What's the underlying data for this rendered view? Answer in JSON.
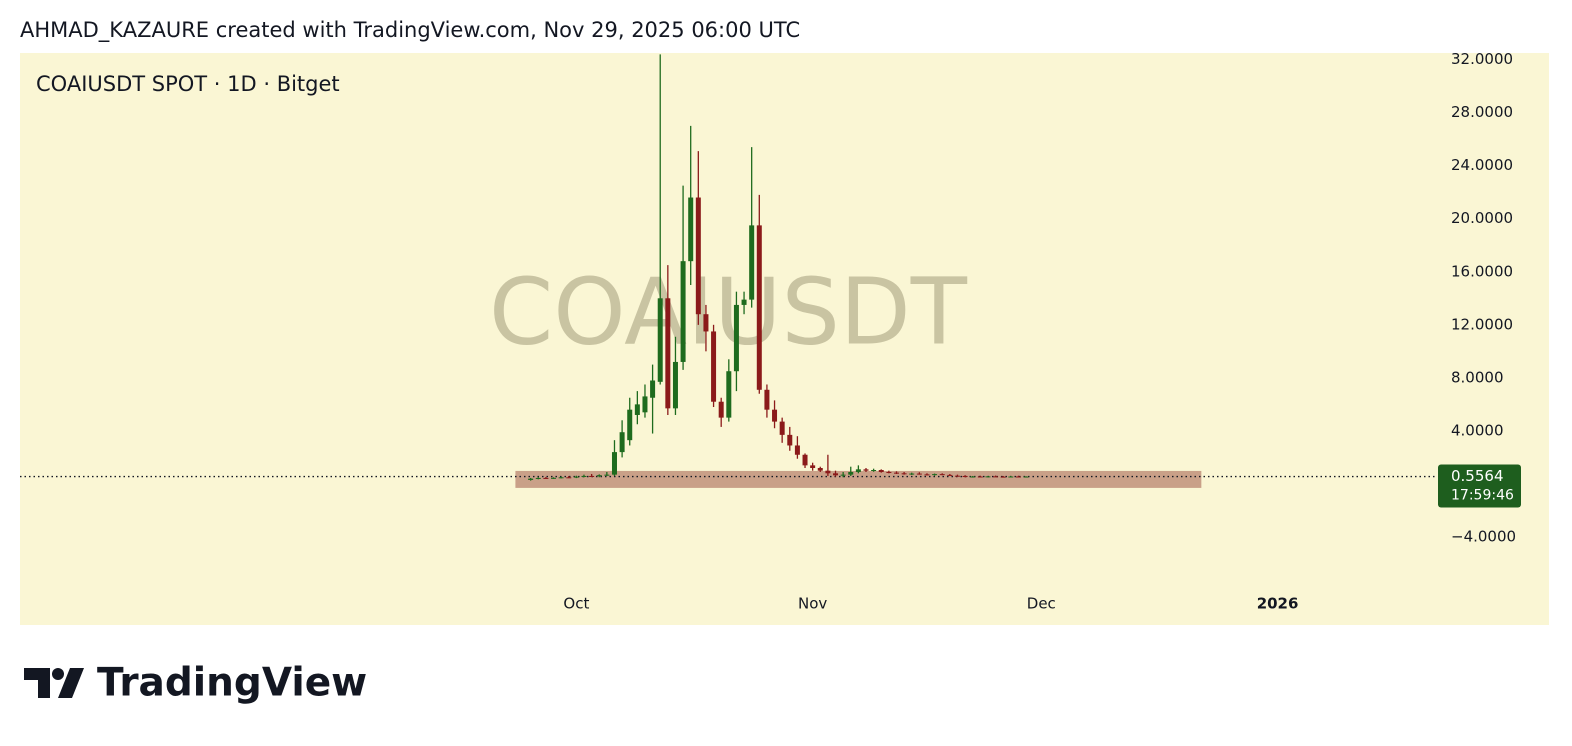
{
  "header": {
    "attribution": "AHMAD_KAZAURE created with TradingView.com, Nov 29, 2025 06:00 UTC"
  },
  "footer": {
    "brand": "TradingView"
  },
  "chart_data": {
    "type": "candlestick",
    "title": "COAIUSDT SPOT · 1D · Bitget",
    "watermark": "COAIUSDT",
    "up_color": "#1e6b1e",
    "down_color": "#8b1a1a",
    "x": [
      "2025-09-25",
      "2025-09-26",
      "2025-09-27",
      "2025-09-28",
      "2025-09-29",
      "2025-09-30",
      "2025-10-01",
      "2025-10-02",
      "2025-10-03",
      "2025-10-04",
      "2025-10-05",
      "2025-10-06",
      "2025-10-07",
      "2025-10-08",
      "2025-10-09",
      "2025-10-10",
      "2025-10-11",
      "2025-10-12",
      "2025-10-13",
      "2025-10-14",
      "2025-10-15",
      "2025-10-16",
      "2025-10-17",
      "2025-10-18",
      "2025-10-19",
      "2025-10-20",
      "2025-10-21",
      "2025-10-22",
      "2025-10-23",
      "2025-10-24",
      "2025-10-25",
      "2025-10-26",
      "2025-10-27",
      "2025-10-28",
      "2025-10-29",
      "2025-10-30",
      "2025-10-31",
      "2025-11-01",
      "2025-11-02",
      "2025-11-03",
      "2025-11-04",
      "2025-11-05",
      "2025-11-06",
      "2025-11-07",
      "2025-11-08",
      "2025-11-09",
      "2025-11-10",
      "2025-11-11",
      "2025-11-12",
      "2025-11-13",
      "2025-11-14",
      "2025-11-15",
      "2025-11-16",
      "2025-11-17",
      "2025-11-18",
      "2025-11-19",
      "2025-11-20",
      "2025-11-21",
      "2025-11-22",
      "2025-11-23",
      "2025-11-24",
      "2025-11-25",
      "2025-11-26",
      "2025-11-27",
      "2025-11-28",
      "2025-11-29"
    ],
    "open": [
      0.3,
      0.4,
      0.45,
      0.42,
      0.46,
      0.5,
      0.48,
      0.55,
      0.6,
      0.58,
      0.66,
      0.7,
      2.4,
      3.3,
      5.2,
      5.4,
      6.5,
      7.7,
      14.0,
      5.7,
      9.2,
      16.8,
      21.6,
      12.8,
      11.5,
      6.2,
      5.0,
      8.5,
      13.5,
      13.9,
      19.5,
      7.1,
      5.6,
      4.7,
      3.7,
      2.9,
      2.2,
      1.4,
      1.2,
      1.0,
      0.8,
      0.65,
      0.7,
      0.9,
      1.1,
      1.0,
      1.05,
      0.9,
      0.85,
      0.8,
      0.75,
      0.78,
      0.72,
      0.7,
      0.74,
      0.68,
      0.62,
      0.6,
      0.52,
      0.56,
      0.54,
      0.57,
      0.55,
      0.53,
      0.56,
      0.54
    ],
    "high": [
      0.45,
      0.5,
      0.52,
      0.5,
      0.55,
      0.6,
      0.62,
      0.7,
      0.75,
      0.72,
      0.9,
      3.3,
      4.8,
      6.5,
      7.0,
      7.5,
      9.0,
      32.4,
      16.5,
      11.1,
      22.5,
      27.0,
      25.1,
      13.5,
      12.0,
      6.5,
      9.4,
      14.5,
      14.5,
      25.4,
      21.8,
      7.5,
      6.3,
      5.0,
      4.3,
      3.6,
      2.3,
      1.6,
      1.3,
      2.2,
      1.0,
      0.9,
      1.3,
      1.4,
      1.2,
      1.15,
      1.1,
      1.0,
      0.95,
      0.9,
      0.85,
      0.88,
      0.8,
      0.78,
      0.8,
      0.75,
      0.7,
      0.66,
      0.6,
      0.62,
      0.6,
      0.63,
      0.6,
      0.6,
      0.62,
      0.58
    ],
    "low": [
      0.25,
      0.35,
      0.4,
      0.38,
      0.42,
      0.45,
      0.44,
      0.5,
      0.52,
      0.5,
      0.6,
      0.6,
      2.0,
      2.9,
      4.5,
      5.0,
      3.8,
      7.5,
      5.2,
      5.2,
      8.6,
      15.0,
      12.0,
      10.0,
      5.8,
      4.3,
      4.7,
      7.0,
      12.8,
      13.3,
      6.8,
      5.0,
      4.2,
      3.1,
      2.5,
      1.9,
      1.2,
      1.0,
      0.9,
      0.6,
      0.55,
      0.5,
      0.6,
      0.8,
      0.9,
      0.92,
      0.85,
      0.8,
      0.75,
      0.7,
      0.68,
      0.7,
      0.65,
      0.62,
      0.66,
      0.6,
      0.55,
      0.5,
      0.48,
      0.5,
      0.5,
      0.52,
      0.5,
      0.49,
      0.52,
      0.52
    ],
    "close": [
      0.4,
      0.45,
      0.42,
      0.46,
      0.5,
      0.48,
      0.55,
      0.6,
      0.58,
      0.66,
      0.7,
      2.4,
      3.9,
      5.6,
      6.0,
      6.6,
      7.8,
      14.0,
      5.7,
      9.2,
      16.8,
      21.6,
      12.8,
      11.5,
      6.2,
      5.0,
      8.5,
      13.5,
      13.9,
      19.5,
      7.1,
      5.6,
      4.7,
      3.7,
      2.9,
      2.2,
      1.4,
      1.2,
      1.0,
      0.8,
      0.65,
      0.7,
      0.9,
      1.1,
      1.0,
      1.05,
      0.9,
      0.85,
      0.8,
      0.75,
      0.78,
      0.72,
      0.7,
      0.74,
      0.68,
      0.62,
      0.6,
      0.52,
      0.56,
      0.54,
      0.57,
      0.55,
      0.53,
      0.56,
      0.54,
      0.5564
    ],
    "zone": {
      "from": "2025-09-23",
      "to": "2025-12-22",
      "top": 0.98,
      "bottom": -0.3,
      "color": "#c9a088"
    },
    "last_price": 0.5564,
    "countdown": "17:59:46",
    "last_price_color": "#1e5e1e",
    "xlim": [
      "2025-07-20",
      "2026-01-21"
    ],
    "xticks": [
      {
        "value": "2025-10-01",
        "label": "Oct"
      },
      {
        "value": "2025-11-01",
        "label": "Nov"
      },
      {
        "value": "2025-12-01",
        "label": "Dec"
      },
      {
        "value": "2026-01-01",
        "label": "2026"
      }
    ],
    "ylim": [
      -8.0,
      32.5
    ],
    "yticks": [
      {
        "value": 32,
        "label": "32.0000"
      },
      {
        "value": 28,
        "label": "28.0000"
      },
      {
        "value": 24,
        "label": "24.0000"
      },
      {
        "value": 20,
        "label": "20.0000"
      },
      {
        "value": 16,
        "label": "16.0000"
      },
      {
        "value": 12,
        "label": "12.0000"
      },
      {
        "value": 8,
        "label": "8.0000"
      },
      {
        "value": 4,
        "label": "4.0000"
      },
      {
        "value": -4,
        "label": "−4.0000"
      }
    ],
    "grid": false
  }
}
